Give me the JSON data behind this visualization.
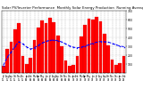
{
  "title": "Solar PV/Inverter Performance  Monthly Solar Energy Production  Running Average",
  "title_fontsize": 2.8,
  "bar_color": "#FF0000",
  "bar_edge_color": "#CC0000",
  "avg_line_color": "#0000FF",
  "background_color": "#FFFFFF",
  "grid_color": "#AAAAAA",
  "ylim": [
    0,
    700
  ],
  "yticks": [
    100,
    200,
    300,
    400,
    500,
    600,
    700
  ],
  "months": [
    "Jul\n05",
    "Aug\n05",
    "Sep\n05",
    "Oct\n05",
    "Nov\n05",
    "Dec\n05",
    "Jan\n06",
    "Feb\n06",
    "Mar\n06",
    "Apr\n06",
    "May\n06",
    "Jun\n06",
    "Jul\n06",
    "Aug\n06",
    "Sep\n06",
    "Oct\n06",
    "Nov\n06",
    "Dec\n06",
    "Jan\n07",
    "Feb\n07",
    "Mar\n07",
    "Apr\n07",
    "May\n07",
    "Jun\n07",
    "Jul\n07",
    "Aug\n07",
    "Sep\n07",
    "Oct\n07",
    "Nov\n07",
    "Dec\n07",
    "Jan\n08",
    "Feb\n08"
  ],
  "values": [
    85,
    270,
    350,
    490,
    560,
    195,
    105,
    175,
    370,
    510,
    590,
    565,
    620,
    570,
    420,
    300,
    145,
    85,
    95,
    195,
    410,
    545,
    615,
    600,
    635,
    580,
    440,
    310,
    155,
    90,
    110,
    195
  ],
  "running_avg": [
    85,
    177,
    235,
    299,
    352,
    326,
    292,
    269,
    284,
    311,
    337,
    356,
    366,
    370,
    362,
    349,
    327,
    305,
    289,
    283,
    290,
    302,
    318,
    333,
    346,
    354,
    352,
    346,
    333,
    316,
    302,
    295
  ]
}
